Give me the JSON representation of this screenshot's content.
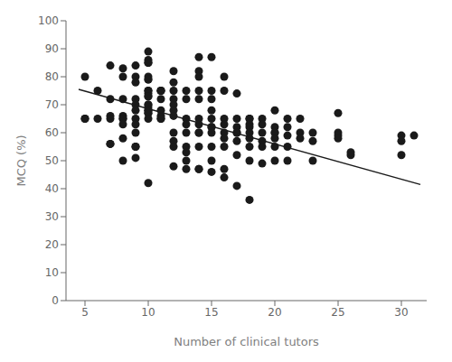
{
  "chart_data": {
    "type": "scatter",
    "xlabel": "Number of clinical tutors",
    "ylabel": "MCQ (%)",
    "xlim": [
      3.5,
      32
    ],
    "ylim": [
      0,
      100
    ],
    "xticks": [
      5,
      10,
      15,
      20,
      25,
      30
    ],
    "yticks": [
      0,
      10,
      20,
      30,
      40,
      50,
      60,
      70,
      80,
      90,
      100
    ],
    "grid": false,
    "series": [
      {
        "type": "scatter",
        "color": "#1a1a1a",
        "x": [
          5,
          5,
          5,
          6,
          6,
          7,
          7,
          7,
          7,
          7,
          7,
          8,
          8,
          8,
          8,
          8,
          8,
          8,
          8,
          8,
          9,
          9,
          9,
          9,
          9,
          9,
          9,
          9,
          9,
          9,
          9,
          9,
          10,
          10,
          10,
          10,
          10,
          10,
          10,
          10,
          10,
          10,
          10,
          10,
          10,
          10,
          10,
          10,
          10,
          10,
          10,
          10,
          10,
          11,
          11,
          11,
          11,
          11,
          11,
          11,
          11,
          12,
          12,
          12,
          12,
          12,
          12,
          12,
          12,
          12,
          12,
          12,
          13,
          13,
          13,
          13,
          13,
          13,
          13,
          13,
          13,
          14,
          14,
          14,
          14,
          14,
          14,
          14,
          14,
          14,
          14,
          14,
          14,
          15,
          15,
          15,
          15,
          15,
          15,
          15,
          15,
          15,
          15,
          15,
          16,
          16,
          16,
          16,
          16,
          16,
          16,
          16,
          16,
          17,
          17,
          17,
          17,
          17,
          17,
          17,
          17,
          18,
          18,
          18,
          18,
          18,
          18,
          18,
          18,
          18,
          19,
          19,
          19,
          19,
          19,
          19,
          20,
          20,
          20,
          20,
          20,
          20,
          20,
          21,
          21,
          21,
          21,
          21,
          22,
          22,
          22,
          23,
          23,
          23,
          25,
          25,
          25,
          25,
          26,
          26,
          30,
          30,
          30,
          31
        ],
        "values": [
          80,
          65,
          65,
          75,
          65,
          84,
          72,
          66,
          65,
          56,
          56,
          83,
          80,
          72,
          66,
          65,
          65,
          63,
          58,
          50,
          84,
          80,
          78,
          72,
          70,
          68,
          65,
          63,
          60,
          55,
          55,
          51,
          89,
          86,
          85,
          85,
          80,
          79,
          79,
          75,
          75,
          74,
          73,
          73,
          70,
          70,
          69,
          68,
          68,
          67,
          67,
          65,
          42,
          75,
          75,
          75,
          72,
          68,
          66,
          65,
          65,
          82,
          78,
          75,
          72,
          70,
          68,
          66,
          60,
          57,
          55,
          48,
          75,
          72,
          65,
          63,
          60,
          55,
          53,
          50,
          47,
          87,
          82,
          80,
          75,
          72,
          65,
          63,
          60,
          60,
          55,
          47,
          47,
          87,
          75,
          72,
          68,
          65,
          62,
          62,
          60,
          55,
          50,
          46,
          80,
          75,
          65,
          63,
          60,
          58,
          55,
          47,
          44,
          74,
          65,
          62,
          60,
          60,
          57,
          52,
          41,
          65,
          65,
          63,
          62,
          60,
          58,
          55,
          50,
          36,
          65,
          63,
          60,
          57,
          55,
          49,
          68,
          62,
          60,
          60,
          58,
          55,
          50,
          65,
          62,
          59,
          55,
          50,
          65,
          60,
          58,
          60,
          57,
          50,
          67,
          60,
          59,
          58,
          52,
          53,
          59,
          57,
          52,
          59
        ]
      },
      {
        "type": "line",
        "color": "#1a1a1a",
        "x": [
          4.5,
          31.5
        ],
        "values": [
          75.5,
          41.5
        ]
      }
    ]
  }
}
